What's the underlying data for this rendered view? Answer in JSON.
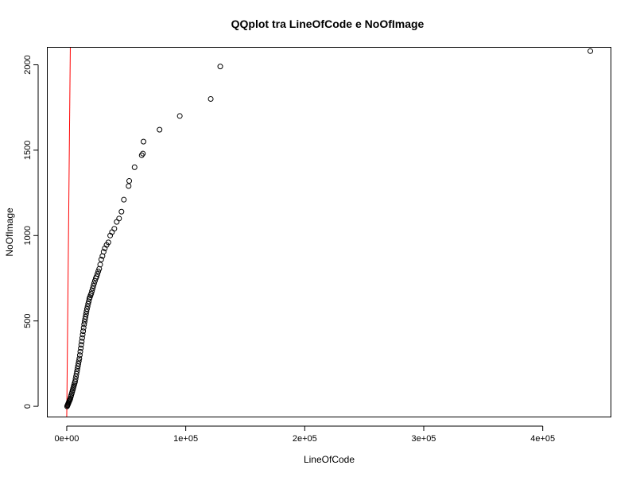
{
  "chart_data": {
    "type": "scatter",
    "title": "QQplot tra LineOfCode e NoOfImage",
    "xlabel": "LineOfCode",
    "ylabel": "NoOfImage",
    "xlim": [
      -16000,
      457000
    ],
    "ylim": [
      -60,
      2100
    ],
    "x_ticks": [
      0,
      100000,
      200000,
      300000,
      400000
    ],
    "x_tick_labels": [
      "0e+00",
      "1e+05",
      "2e+05",
      "3e+05",
      "4e+05"
    ],
    "y_ticks": [
      0,
      500,
      1000,
      1500,
      2000
    ],
    "y_tick_labels": [
      "0",
      "500",
      "1000",
      "1500",
      "2000"
    ],
    "reference_line": {
      "color": "#ff0000",
      "points": [
        [
          0,
          -60
        ],
        [
          3000,
          2100
        ]
      ]
    },
    "points_note": "dense sample of points along the curve",
    "series": [
      {
        "x": [
          300,
          600,
          900,
          1200,
          1500,
          1800,
          2100,
          2400,
          2700,
          3000,
          3400,
          3800,
          4200,
          4600,
          5000,
          5400,
          5800,
          6200,
          6600,
          7000,
          7400,
          7800,
          8200,
          8600,
          9000,
          9400,
          9800,
          10200,
          10600,
          11000,
          11400,
          11800,
          12200,
          12600,
          13000,
          13400,
          13800,
          14200,
          14600,
          15000,
          15400,
          15800,
          16200,
          16600,
          17000,
          17500,
          18000,
          18500,
          19000,
          19500,
          20000,
          20600,
          21200,
          21800,
          22400,
          23000,
          23700,
          24400,
          25100,
          25800,
          26500,
          27300,
          28100,
          29000,
          30000,
          31000,
          32000,
          33500,
          35000,
          36500,
          38000,
          40000,
          42000,
          44000,
          46000,
          48000,
          52000,
          52500,
          57000,
          63000,
          64000,
          64500,
          78000,
          95000,
          121000,
          129000,
          440000
        ],
        "y": [
          0,
          5,
          10,
          15,
          20,
          25,
          30,
          35,
          40,
          45,
          55,
          65,
          75,
          85,
          95,
          105,
          115,
          125,
          135,
          145,
          160,
          175,
          190,
          205,
          220,
          235,
          250,
          265,
          280,
          300,
          320,
          340,
          360,
          380,
          400,
          420,
          440,
          460,
          480,
          495,
          510,
          525,
          540,
          555,
          570,
          585,
          600,
          615,
          630,
          640,
          650,
          660,
          675,
          690,
          705,
          720,
          735,
          750,
          760,
          775,
          790,
          805,
          830,
          860,
          880,
          905,
          925,
          945,
          960,
          1000,
          1020,
          1040,
          1080,
          1100,
          1140,
          1210,
          1290,
          1320,
          1400,
          1470,
          1480,
          1550,
          1620,
          1700,
          1800,
          1990,
          2080
        ]
      }
    ]
  }
}
